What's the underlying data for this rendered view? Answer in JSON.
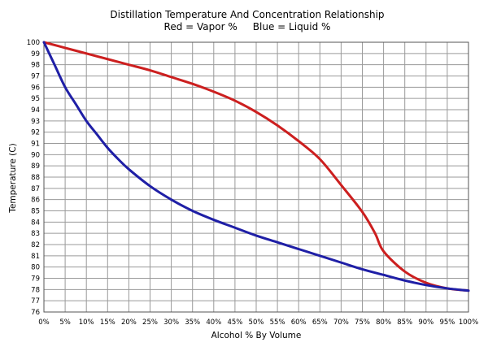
{
  "chart_data": {
    "type": "line",
    "title": "Distillation Temperature And Concentration Relationship",
    "subtitle": "Red = Vapor %     Blue = Liquid %",
    "xlabel": "Alcohol % By Volume",
    "ylabel": "Temperature (C)",
    "xlim": [
      0,
      100
    ],
    "ylim": [
      76,
      100
    ],
    "x_ticks": [
      "0%",
      "5%",
      "10%",
      "15%",
      "20%",
      "25%",
      "30%",
      "35%",
      "40%",
      "45%",
      "50%",
      "55%",
      "60%",
      "65%",
      "70%",
      "75%",
      "80%",
      "85%",
      "90%",
      "95%",
      "100%"
    ],
    "y_ticks": [
      "76",
      "77",
      "78",
      "79",
      "80",
      "81",
      "82",
      "83",
      "84",
      "85",
      "86",
      "87",
      "88",
      "89",
      "90",
      "91",
      "92",
      "93",
      "94",
      "95",
      "96",
      "97",
      "98",
      "99",
      "100"
    ],
    "grid": true,
    "series": [
      {
        "name": "Vapor %",
        "color": "#cc1f1f",
        "points": [
          [
            0,
            100
          ],
          [
            5,
            99.5
          ],
          [
            10,
            99
          ],
          [
            15,
            98.5
          ],
          [
            20,
            98
          ],
          [
            25,
            97.5
          ],
          [
            30,
            96.9
          ],
          [
            35,
            96.3
          ],
          [
            40,
            95.6
          ],
          [
            45,
            94.8
          ],
          [
            50,
            93.8
          ],
          [
            55,
            92.6
          ],
          [
            60,
            91.2
          ],
          [
            65,
            89.6
          ],
          [
            70,
            87.3
          ],
          [
            75,
            84.9
          ],
          [
            78,
            83
          ],
          [
            80,
            81.4
          ],
          [
            85,
            79.6
          ],
          [
            90,
            78.6
          ],
          [
            95,
            78.1
          ],
          [
            100,
            77.9
          ]
        ]
      },
      {
        "name": "Liquid %",
        "color": "#1f1fa6",
        "points": [
          [
            0,
            100
          ],
          [
            2.5,
            98
          ],
          [
            5,
            96
          ],
          [
            7.5,
            94.5
          ],
          [
            10,
            93
          ],
          [
            12.5,
            91.8
          ],
          [
            15,
            90.6
          ],
          [
            17.5,
            89.6
          ],
          [
            20,
            88.7
          ],
          [
            25,
            87.2
          ],
          [
            30,
            86
          ],
          [
            35,
            85
          ],
          [
            40,
            84.2
          ],
          [
            45,
            83.5
          ],
          [
            50,
            82.8
          ],
          [
            55,
            82.2
          ],
          [
            60,
            81.6
          ],
          [
            65,
            81
          ],
          [
            70,
            80.4
          ],
          [
            75,
            79.8
          ],
          [
            80,
            79.3
          ],
          [
            85,
            78.8
          ],
          [
            90,
            78.4
          ],
          [
            95,
            78.1
          ],
          [
            100,
            77.9
          ]
        ]
      }
    ]
  }
}
